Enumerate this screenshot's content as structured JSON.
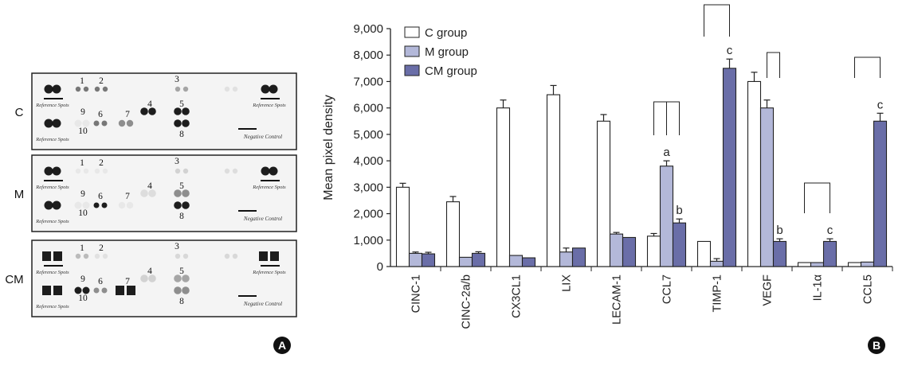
{
  "panel_a": {
    "letter": "A",
    "blots": [
      {
        "label": "C",
        "numbers": [
          "1",
          "2",
          "3",
          "4",
          "5",
          "6",
          "7",
          "8",
          "9",
          "10"
        ],
        "ref_labels": [
          "Reference Spots",
          "Reference Spots",
          "Reference Spots"
        ],
        "neg_label": "Negative Control"
      },
      {
        "label": "M",
        "numbers": [
          "1",
          "2",
          "3",
          "4",
          "5",
          "6",
          "7",
          "8",
          "9",
          "10"
        ],
        "ref_labels": [
          "Reference Spots",
          "Reference Spots",
          "Reference Spots"
        ],
        "neg_label": "Negative Control"
      },
      {
        "label": "CM",
        "numbers": [
          "1",
          "2",
          "3",
          "4",
          "5",
          "6",
          "7",
          "8",
          "9",
          "10"
        ],
        "ref_labels": [
          "Reference Spots",
          "Reference Spots",
          "Reference Spots"
        ],
        "neg_label": "Negative Control"
      }
    ]
  },
  "panel_b": {
    "letter": "B"
  },
  "chart_data": {
    "type": "bar",
    "ylabel": "Mean pixel density",
    "xlabel": "",
    "ylim": [
      0,
      9000
    ],
    "yticks": [
      "0",
      "1,000",
      "2,000",
      "3,000",
      "4,000",
      "5,000",
      "6,000",
      "7,000",
      "8,000",
      "9,000"
    ],
    "categories": [
      "CINC-1",
      "CINC-2a/b",
      "CX3CL1",
      "LIX",
      "LECAM-1",
      "CCL7",
      "TIMP-1",
      "VEGF",
      "IL-1α",
      "CCL5"
    ],
    "series": [
      {
        "name": "C group",
        "color": "#ffffff",
        "values": [
          3000,
          2450,
          6000,
          6500,
          5500,
          1150,
          950,
          7000,
          150,
          150
        ],
        "errors": [
          150,
          200,
          300,
          350,
          250,
          100,
          0,
          350,
          0,
          0
        ]
      },
      {
        "name": "M group",
        "color": "#b3b8d9",
        "values": [
          500,
          350,
          420,
          550,
          1230,
          3800,
          200,
          6000,
          150,
          170
        ],
        "errors": [
          50,
          0,
          0,
          150,
          60,
          200,
          100,
          300,
          0,
          0
        ]
      },
      {
        "name": "CM group",
        "color": "#6a6ea8",
        "values": [
          480,
          500,
          330,
          700,
          1100,
          1650,
          7500,
          950,
          950,
          5500
        ],
        "errors": [
          60,
          60,
          0,
          0,
          0,
          150,
          350,
          100,
          100,
          300
        ]
      }
    ],
    "annotations": [
      {
        "category": "CCL7",
        "series": "M group",
        "text": "a"
      },
      {
        "category": "CCL7",
        "series": "CM group",
        "text": "b"
      },
      {
        "category": "TIMP-1",
        "series": "CM group",
        "text": "c"
      },
      {
        "category": "VEGF",
        "series": "CM group",
        "text": "b"
      },
      {
        "category": "IL-1α",
        "series": "CM group",
        "text": "c"
      },
      {
        "category": "CCL5",
        "series": "CM group",
        "text": "c"
      }
    ],
    "legend_position": "top-left",
    "grid": false
  }
}
